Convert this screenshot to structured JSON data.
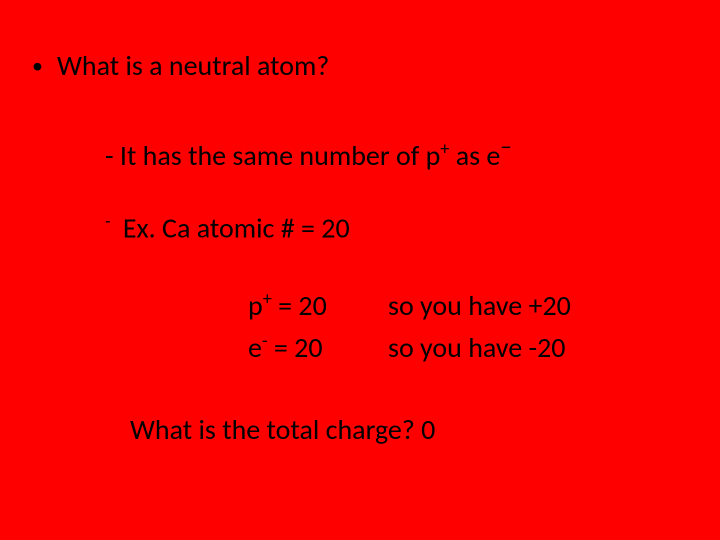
{
  "slide": {
    "background_color": "#ff0000",
    "text_color": "#000000",
    "font_family": "Calibri",
    "base_fontsize": 28
  },
  "bullet_glyph": "•",
  "title": "What is a neutral atom?",
  "definition_prefix": "- It has the same number of p",
  "definition_sup1": "+",
  "definition_mid": " as e",
  "definition_sup2": "−",
  "example_dash": "-",
  "example_label": " Ex.  Ca atomic # = 20",
  "proton_prefix": "p",
  "proton_sup": "+",
  "proton_eq": " = 20",
  "proton_result": "so you have +20",
  "electron_prefix": "e",
  "electron_sup": "-",
  "electron_eq": " = 20",
  "electron_result": "so you have -20",
  "question": "What is the total charge?   0"
}
